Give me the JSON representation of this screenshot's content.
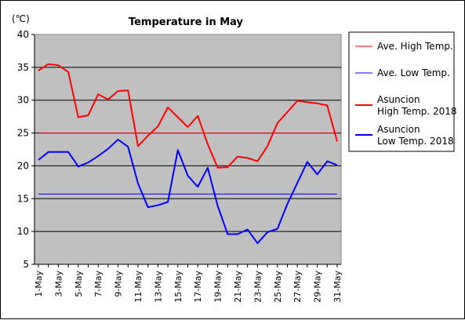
{
  "chart_data": {
    "type": "line",
    "title": "Temperature in May",
    "unit": "(℃)",
    "ylim": [
      5,
      40
    ],
    "y_ticks": [
      5,
      10,
      15,
      20,
      25,
      30,
      35,
      40
    ],
    "x_tick_labels": [
      "1-May",
      "3-May",
      "5-May",
      "7-May",
      "9-May",
      "11-May",
      "13-May",
      "15-May",
      "17-May",
      "19-May",
      "21-May",
      "23-May",
      "25-May",
      "27-May",
      "29-May",
      "31-May"
    ],
    "x_days": [
      1,
      2,
      3,
      4,
      5,
      6,
      7,
      8,
      9,
      10,
      11,
      12,
      13,
      14,
      15,
      16,
      17,
      18,
      19,
      20,
      21,
      22,
      23,
      24,
      25,
      26,
      27,
      28,
      29,
      30,
      31
    ],
    "grid": "horizontal",
    "legend_position": "right",
    "series": [
      {
        "name": "Ave. High Temp.",
        "color": "#ff0000",
        "width": 1,
        "values": [
          25,
          25,
          25,
          25,
          25,
          25,
          25,
          25,
          25,
          25,
          25,
          25,
          25,
          25,
          25,
          25,
          25,
          25,
          25,
          25,
          25,
          25,
          25,
          25,
          25,
          25,
          25,
          25,
          25,
          25,
          25
        ]
      },
      {
        "name": "Ave. Low Temp.",
        "color": "#0000ff",
        "width": 1,
        "values": [
          15.7,
          15.7,
          15.7,
          15.7,
          15.7,
          15.7,
          15.7,
          15.7,
          15.7,
          15.7,
          15.7,
          15.7,
          15.7,
          15.7,
          15.7,
          15.7,
          15.7,
          15.7,
          15.7,
          15.7,
          15.7,
          15.7,
          15.7,
          15.7,
          15.7,
          15.7,
          15.7,
          15.7,
          15.7,
          15.7,
          15.7
        ]
      },
      {
        "name": "Asuncion High Temp. 2018",
        "label_lines": [
          "Asuncion",
          "High Temp. 2018"
        ],
        "color": "#ff0000",
        "width": 2,
        "values": [
          34.5,
          35.5,
          35.3,
          34.3,
          27.4,
          27.7,
          30.9,
          30.1,
          31.4,
          31.5,
          23.0,
          24.6,
          26.0,
          28.9,
          27.4,
          25.9,
          27.6,
          23.3,
          19.7,
          19.8,
          21.4,
          21.2,
          20.7,
          23.0,
          26.5,
          28.2,
          29.9,
          29.7,
          29.5,
          29.2,
          23.7
        ]
      },
      {
        "name": "Asuncion Low Temp. 2018",
        "label_lines": [
          "Asuncion",
          "Low Temp. 2018"
        ],
        "color": "#0000ff",
        "width": 2,
        "values": [
          20.9,
          22.1,
          22.1,
          22.1,
          19.9,
          20.5,
          21.5,
          22.6,
          24.0,
          22.9,
          17.3,
          13.7,
          14.0,
          14.5,
          22.4,
          18.5,
          16.8,
          19.7,
          13.9,
          9.6,
          9.6,
          10.3,
          8.2,
          9.9,
          10.4,
          14.2,
          17.4,
          20.6,
          18.7,
          20.7,
          20.1
        ]
      }
    ]
  }
}
